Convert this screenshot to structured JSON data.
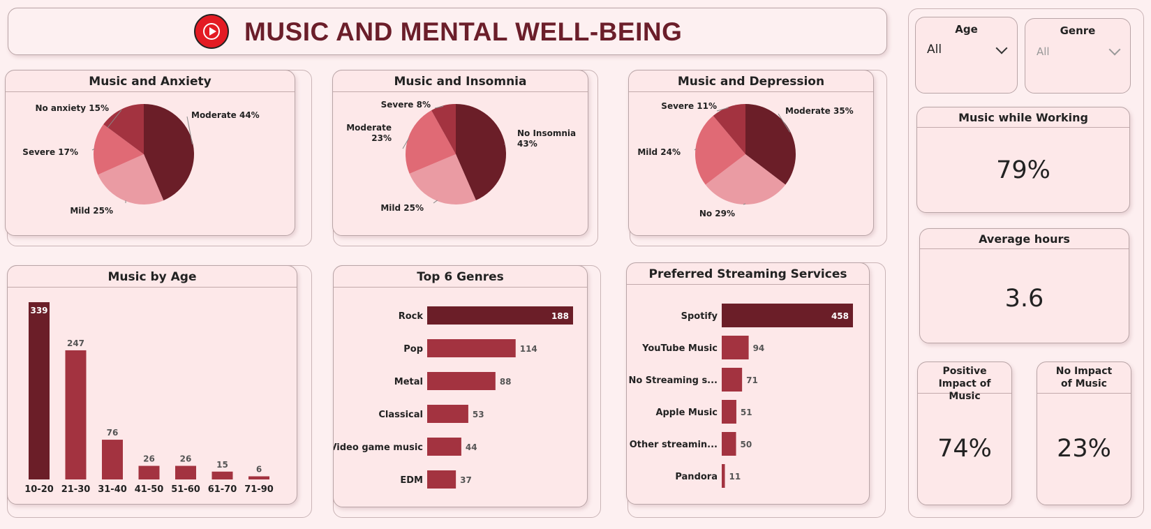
{
  "header": {
    "title": "MUSIC AND MENTAL WELL-BEING",
    "logo_icon": "youtube-music-icon"
  },
  "colors": {
    "dark": "#6b1e28",
    "medium": "#a33340",
    "light": "#e06a75",
    "lighter": "#ea9ba3",
    "panel_bg": "#fde8e9"
  },
  "slicers": {
    "age": {
      "label": "Age",
      "value": "All"
    },
    "genre": {
      "label": "Genre",
      "value": "All"
    }
  },
  "kpis": {
    "music_while_working": {
      "label": "Music while Working",
      "value": "79%"
    },
    "average_hours": {
      "label": "Average hours",
      "value": "3.6"
    },
    "positive_impact": {
      "label": "Positive Impact of Music",
      "value": "74%"
    },
    "no_impact": {
      "label": "No Impact of Music",
      "value": "23%"
    }
  },
  "chart_data": [
    {
      "type": "pie",
      "title": "Music and Anxiety",
      "slices": [
        {
          "label": "Moderate",
          "value": 44,
          "display": "Moderate 44%",
          "color": "#6b1e28"
        },
        {
          "label": "Mild",
          "value": 25,
          "display": "Mild 25%",
          "color": "#ea9ba3"
        },
        {
          "label": "Severe",
          "value": 17,
          "display": "Severe 17%",
          "color": "#e06a75"
        },
        {
          "label": "No anxiety",
          "value": 15,
          "display": "No anxiety 15%",
          "color": "#a33340"
        }
      ]
    },
    {
      "type": "pie",
      "title": "Music and Insomnia",
      "slices": [
        {
          "label": "No Insomnia",
          "value": 43,
          "display": "No Insomnia|43%",
          "color": "#6b1e28"
        },
        {
          "label": "Mild",
          "value": 25,
          "display": "Mild 25%",
          "color": "#ea9ba3"
        },
        {
          "label": "Moderate",
          "value": 23,
          "display": "Moderate|23%",
          "color": "#e06a75"
        },
        {
          "label": "Severe",
          "value": 8,
          "display": "Severe 8%",
          "color": "#a33340"
        }
      ]
    },
    {
      "type": "pie",
      "title": "Music and Depression",
      "slices": [
        {
          "label": "Moderate",
          "value": 35,
          "display": "Moderate 35%",
          "color": "#6b1e28"
        },
        {
          "label": "No",
          "value": 29,
          "display": "No 29%",
          "color": "#ea9ba3"
        },
        {
          "label": "Mild",
          "value": 24,
          "display": "Mild 24%",
          "color": "#e06a75"
        },
        {
          "label": "Severe",
          "value": 11,
          "display": "Severe 11%",
          "color": "#a33340"
        }
      ]
    },
    {
      "type": "bar",
      "title": "Music by Age",
      "categories": [
        "10-20",
        "21-30",
        "31-40",
        "41-50",
        "51-60",
        "61-70",
        "71-90"
      ],
      "values": [
        339,
        247,
        76,
        26,
        26,
        15,
        6
      ]
    },
    {
      "type": "bar",
      "orientation": "horizontal",
      "title": "Top 6 Genres",
      "categories": [
        "Rock",
        "Pop",
        "Metal",
        "Classical",
        "Video game music",
        "EDM"
      ],
      "values": [
        188,
        114,
        88,
        53,
        44,
        37
      ]
    },
    {
      "type": "bar",
      "orientation": "horizontal",
      "title": "Preferred Streaming Services",
      "categories": [
        "Spotify",
        "YouTube Music",
        "No Streaming s...",
        "Apple Music",
        "Other streamin...",
        "Pandora"
      ],
      "values": [
        458,
        94,
        71,
        51,
        50,
        11
      ]
    }
  ]
}
